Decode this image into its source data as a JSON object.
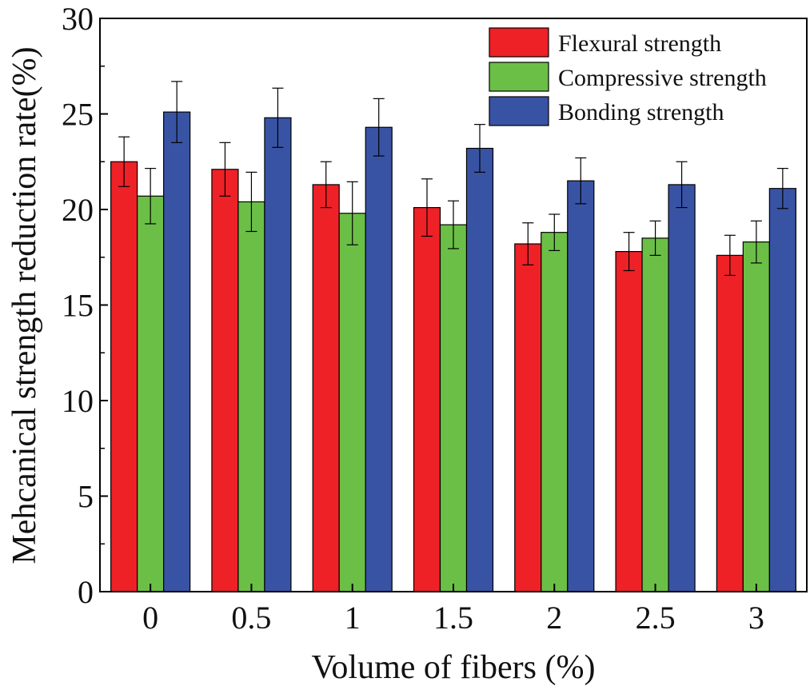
{
  "chart_data": {
    "type": "bar",
    "title": "",
    "xlabel": "Volume of fibers (%)",
    "ylabel": "Mehcanical strength reduction rate(%)",
    "ylim": [
      0,
      30
    ],
    "yticks": [
      "0",
      "5",
      "10",
      "15",
      "20",
      "25",
      "30"
    ],
    "categories": [
      "0",
      "0.5",
      "1",
      "1.5",
      "2",
      "2.5",
      "3"
    ],
    "series": [
      {
        "name": "Flexural strength",
        "color": "#ee2127",
        "values": [
          22.5,
          22.1,
          21.3,
          20.1,
          18.2,
          17.8,
          17.6
        ],
        "errors": [
          1.3,
          1.4,
          1.2,
          1.5,
          1.1,
          1.0,
          1.05
        ]
      },
      {
        "name": "Compressive strength",
        "color": "#6bbf47",
        "values": [
          20.7,
          20.4,
          19.8,
          19.2,
          18.8,
          18.5,
          18.3
        ],
        "errors": [
          1.45,
          1.55,
          1.65,
          1.25,
          0.95,
          0.9,
          1.1
        ]
      },
      {
        "name": "Bonding strength",
        "color": "#3953a4",
        "values": [
          25.1,
          24.8,
          24.3,
          23.2,
          21.5,
          21.3,
          21.1
        ],
        "errors": [
          1.6,
          1.55,
          1.5,
          1.25,
          1.2,
          1.2,
          1.05
        ]
      }
    ],
    "legend_position": "top-right",
    "grid": false
  }
}
